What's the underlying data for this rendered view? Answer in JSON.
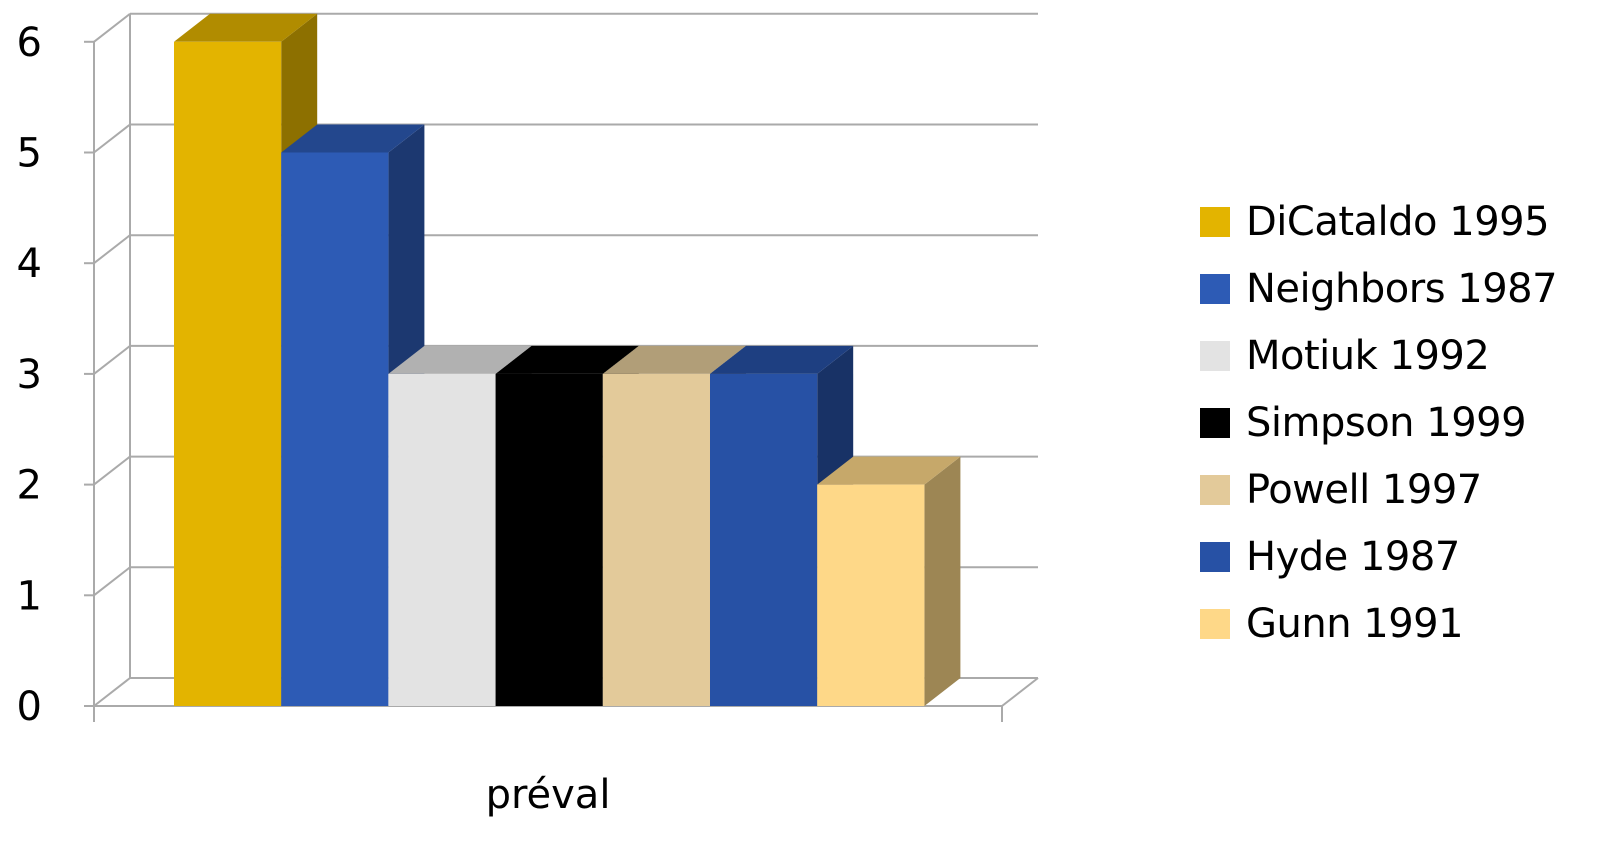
{
  "chart_data": {
    "type": "bar",
    "style": "3d-clustered-column",
    "categories": [
      "préval"
    ],
    "series": [
      {
        "name": "DiCataldo 1995",
        "values": [
          6
        ],
        "color": "#E3B400"
      },
      {
        "name": "Neighbors 1987",
        "values": [
          5
        ],
        "color": "#2D5BB5"
      },
      {
        "name": "Motiuk 1992",
        "values": [
          3
        ],
        "color": "#E3E3E3"
      },
      {
        "name": "Simpson 1999",
        "values": [
          3
        ],
        "color": "#000000"
      },
      {
        "name": "Powell  1997",
        "values": [
          3
        ],
        "color": "#E3CA9A"
      },
      {
        "name": "Hyde 1987",
        "values": [
          3
        ],
        "color": "#2751A5"
      },
      {
        "name": "Gunn 1991",
        "values": [
          2
        ],
        "color": "#FED888"
      }
    ],
    "ylim": [
      0,
      6
    ],
    "yticks": [
      "0",
      "1",
      "2",
      "3",
      "4",
      "5",
      "6"
    ],
    "grid": true,
    "legend": "right",
    "title": "",
    "xlabel": "",
    "ylabel": ""
  }
}
